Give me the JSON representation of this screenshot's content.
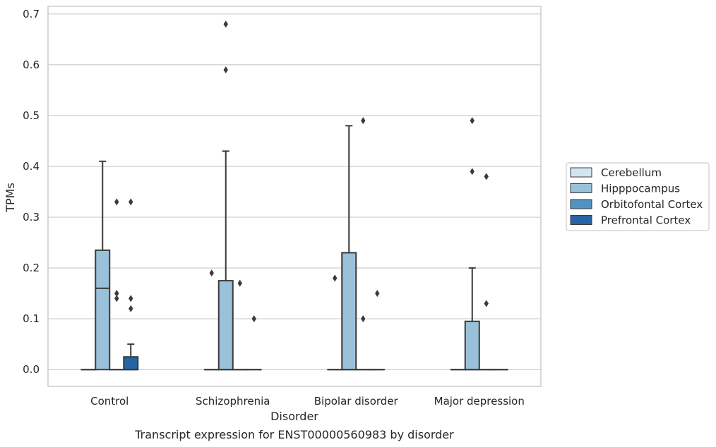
{
  "chart_data": {
    "type": "box",
    "caption": "Transcript expression for ENST00000560983 by disorder",
    "xlabel": "Disorder",
    "ylabel": "TPMs",
    "ylim": [
      -0.033,
      0.715
    ],
    "yticks": [
      "0.0",
      "0.1",
      "0.2",
      "0.3",
      "0.4",
      "0.5",
      "0.6",
      "0.7"
    ],
    "categories": [
      "Control",
      "Schizophrenia",
      "Bipolar disorder",
      "Major depression"
    ],
    "grid": true,
    "legend_position": "right",
    "series": [
      {
        "name": "Cerebellum",
        "color": "#d4e4f1",
        "boxes": [
          {
            "q1": 0,
            "median": 0,
            "q3": 0,
            "whisker_low": 0,
            "whisker_high": 0,
            "outliers": []
          },
          {
            "q1": 0,
            "median": 0,
            "q3": 0,
            "whisker_low": 0,
            "whisker_high": 0,
            "outliers": []
          },
          {
            "q1": 0,
            "median": 0,
            "q3": 0,
            "whisker_low": 0,
            "whisker_high": 0,
            "outliers": []
          },
          {
            "q1": 0,
            "median": 0,
            "q3": 0,
            "whisker_low": 0,
            "whisker_high": 0,
            "outliers": []
          }
        ]
      },
      {
        "name": "Hipppocampus",
        "color": "#9ac1da",
        "boxes": [
          {
            "q1": 0,
            "median": 0.16,
            "q3": 0.235,
            "whisker_low": 0,
            "whisker_high": 0.41,
            "outliers": []
          },
          {
            "q1": 0,
            "median": 0,
            "q3": 0.175,
            "whisker_low": 0,
            "whisker_high": 0.43,
            "outliers": [
              0.59,
              0.68
            ]
          },
          {
            "q1": 0,
            "median": 0,
            "q3": 0.23,
            "whisker_low": 0,
            "whisker_high": 0.48,
            "outliers": []
          },
          {
            "q1": 0,
            "median": 0,
            "q3": 0.095,
            "whisker_low": 0,
            "whisker_high": 0.2,
            "outliers": [
              0.39,
              0.49
            ]
          }
        ]
      },
      {
        "name": "Orbitofontal Cortex",
        "color": "#5092c0",
        "boxes": [
          {
            "q1": 0,
            "median": 0,
            "q3": 0,
            "whisker_low": 0,
            "whisker_high": 0,
            "outliers": [
              0.14,
              0.15,
              0.33
            ]
          },
          {
            "q1": 0,
            "median": 0,
            "q3": 0,
            "whisker_low": 0,
            "whisker_high": 0,
            "outliers": [
              0.17
            ]
          },
          {
            "q1": 0,
            "median": 0,
            "q3": 0,
            "whisker_low": 0,
            "whisker_high": 0,
            "outliers": [
              0.1,
              0.49
            ]
          },
          {
            "q1": 0,
            "median": 0,
            "q3": 0,
            "whisker_low": 0,
            "whisker_high": 0,
            "outliers": [
              0.13,
              0.38
            ]
          }
        ]
      },
      {
        "name": "Prefrontal Cortex",
        "color": "#2664a5",
        "boxes": [
          {
            "q1": 0,
            "median": 0,
            "q3": 0.025,
            "whisker_low": 0,
            "whisker_high": 0.05,
            "outliers": [
              0.12,
              0.14,
              0.33
            ]
          },
          {
            "q1": 0,
            "median": 0,
            "q3": 0,
            "whisker_low": 0,
            "whisker_high": 0,
            "outliers": [
              0.1
            ]
          },
          {
            "q1": 0,
            "median": 0,
            "q3": 0,
            "whisker_low": 0,
            "whisker_high": 0,
            "outliers": [
              0.15
            ]
          },
          {
            "q1": 0,
            "median": 0,
            "q3": 0,
            "whisker_low": 0,
            "whisker_high": 0,
            "outliers": []
          }
        ]
      }
    ],
    "extra_outliers": [
      {
        "category_index": 1,
        "value": 0.19
      },
      {
        "category_index": 2,
        "value": 0.18
      }
    ],
    "colors": {
      "grid": "#cccccc",
      "frame": "#cccccc",
      "box_edge": "#3a3a3a",
      "text": "#262626"
    }
  }
}
